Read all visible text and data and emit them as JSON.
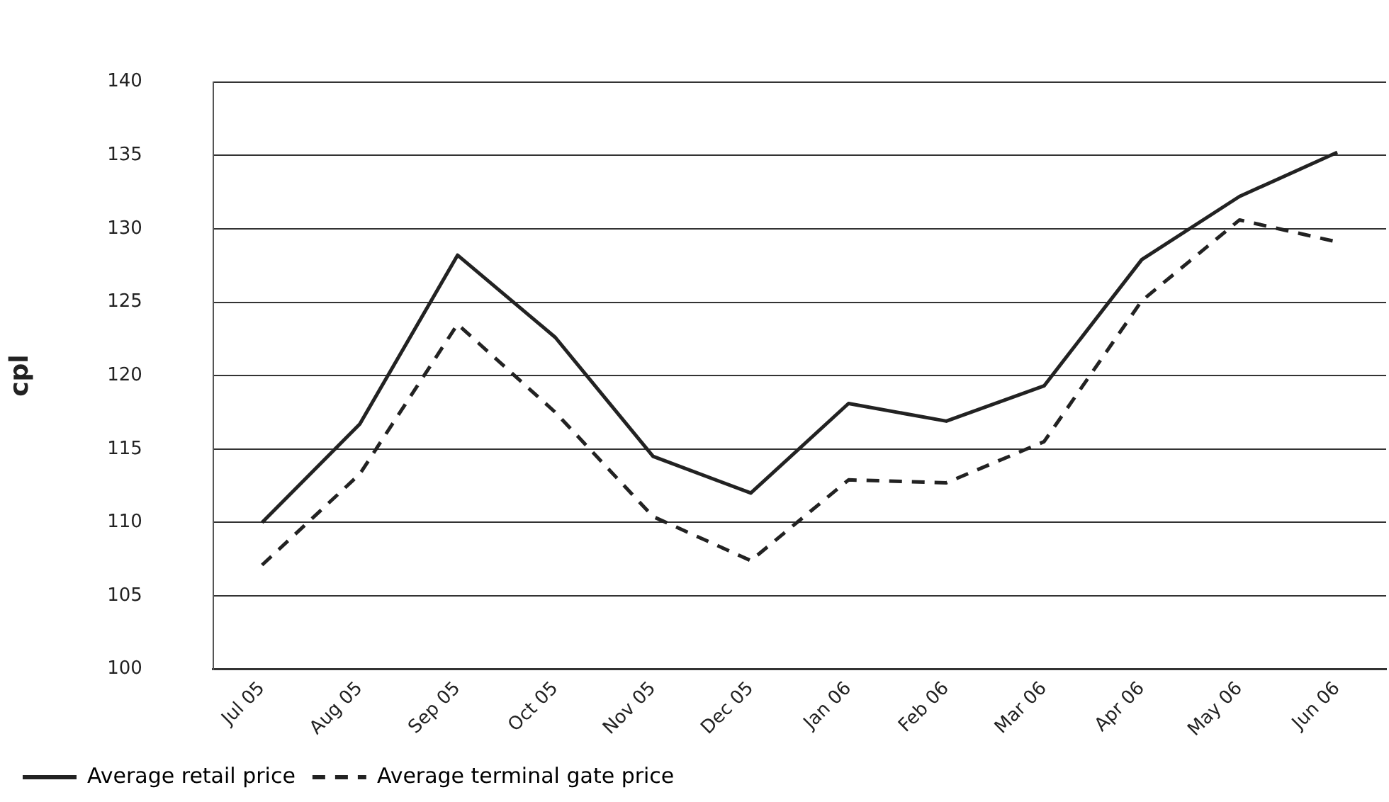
{
  "chart_data": {
    "type": "line",
    "ylabel": "cpl",
    "categories": [
      "Jul 05",
      "Aug 05",
      "Sep 05",
      "Oct 05",
      "Nov 05",
      "Dec 05",
      "Jan 06",
      "Feb 06",
      "Mar 06",
      "Apr 06",
      "May 06",
      "Jun 06"
    ],
    "series": [
      {
        "name": "Average retail price",
        "color": "#222222",
        "line_style": "solid",
        "values": [
          110.0,
          116.7,
          128.2,
          122.6,
          114.5,
          112.0,
          118.1,
          116.9,
          119.3,
          127.9,
          132.2,
          135.2
        ]
      },
      {
        "name": "Average terminal gate price",
        "color": "#222222",
        "line_style": "dashed",
        "values": [
          107.1,
          113.3,
          123.5,
          117.5,
          110.4,
          107.4,
          112.9,
          112.7,
          115.5,
          125.1,
          130.6,
          129.1
        ]
      }
    ],
    "ylim": [
      100,
      140
    ],
    "yticks": [
      100,
      105,
      110,
      115,
      120,
      125,
      130,
      135,
      140
    ],
    "grid": "y",
    "legend": "bottom left",
    "marker": "none"
  }
}
